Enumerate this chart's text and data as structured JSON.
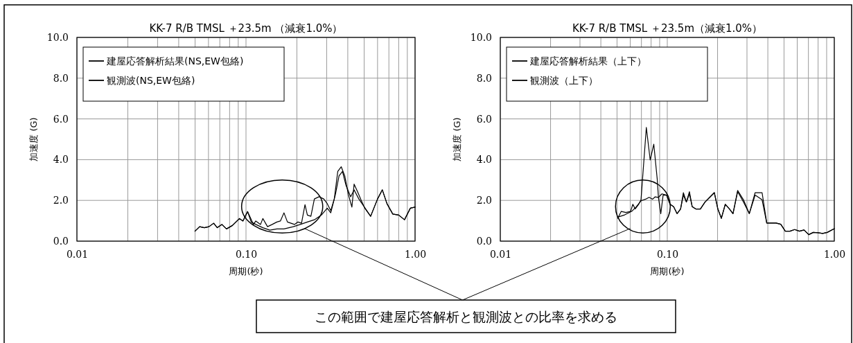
{
  "chart_data": [
    {
      "type": "line",
      "title": "KK-7 R/B TMSL ＋23.5m （減衰1.0%）",
      "xlabel": "周期(秒)",
      "ylabel": "加速度 (G)",
      "log": "x",
      "grid": true,
      "legend": "top left",
      "xlim": [
        0.01,
        1
      ],
      "ylim": [
        0,
        10
      ],
      "xticks": [
        {
          "value": 0.01,
          "label": "0.01"
        },
        {
          "value": 0.02,
          "label": null
        },
        {
          "value": 0.03,
          "label": null
        },
        {
          "value": 0.04,
          "label": null
        },
        {
          "value": 0.05,
          "label": null
        },
        {
          "value": 0.06,
          "label": null
        },
        {
          "value": 0.07,
          "label": null
        },
        {
          "value": 0.08,
          "label": null
        },
        {
          "value": 0.09,
          "label": null
        },
        {
          "value": 0.1,
          "label": "0.10"
        },
        {
          "value": 0.2,
          "label": null
        },
        {
          "value": 0.3,
          "label": null
        },
        {
          "value": 0.4,
          "label": null
        },
        {
          "value": 0.5,
          "label": null
        },
        {
          "value": 0.6,
          "label": null
        },
        {
          "value": 0.7,
          "label": null
        },
        {
          "value": 0.8,
          "label": null
        },
        {
          "value": 0.9,
          "label": null
        },
        {
          "value": 1,
          "label": "1.00"
        }
      ],
      "yticks": [
        {
          "value": 0,
          "label": "0.0"
        },
        {
          "value": 2,
          "label": "2.0"
        },
        {
          "value": 4,
          "label": "4.0"
        },
        {
          "value": 6,
          "label": "6.0"
        },
        {
          "value": 8,
          "label": "8.0"
        },
        {
          "value": 10,
          "label": "10.0"
        }
      ],
      "series": [
        {
          "name": "建屋応答解析結果(NS,EW包絡)",
          "color": "#000000",
          "x": [
            0.0499,
            0.0532,
            0.0567,
            0.0604,
            0.0644,
            0.0676,
            0.072,
            0.0767,
            0.0831,
            0.0915,
            0.0959,
            0.1022,
            0.1073,
            0.1143,
            0.1258,
            0.1385,
            0.1523,
            0.1677,
            0.1905,
            0.2096,
            0.2307,
            0.2538,
            0.2793,
            0.3024,
            0.3172,
            0.338,
            0.355,
            0.372,
            0.39,
            0.416,
            0.436,
            0.465,
            0.496,
            0.546,
            0.6,
            0.64,
            0.682,
            0.738,
            0.8,
            0.866,
            0.938,
            1.0
          ],
          "values": [
            0.49,
            0.71,
            0.66,
            0.71,
            0.88,
            0.66,
            0.82,
            0.6,
            0.77,
            1.11,
            0.99,
            1.45,
            0.94,
            0.82,
            0.66,
            0.54,
            0.6,
            0.6,
            0.71,
            0.82,
            0.94,
            1.05,
            1.28,
            1.62,
            1.39,
            2.29,
            3.2,
            3.42,
            2.75,
            2.18,
            2.52,
            2.07,
            1.73,
            1.22,
            2.07,
            2.52,
            1.84,
            1.33,
            1.28,
            1.05,
            1.62,
            1.67
          ]
        },
        {
          "name": "観測波(NS,EW包絡)",
          "color": "#000000",
          "x": [
            0.0499,
            0.0532,
            0.0567,
            0.0604,
            0.0644,
            0.0676,
            0.072,
            0.0767,
            0.0831,
            0.0915,
            0.0959,
            0.1022,
            0.1107,
            0.1143,
            0.1219,
            0.1258,
            0.1341,
            0.1429,
            0.1523,
            0.1598,
            0.1677,
            0.1759,
            0.1845,
            0.1935,
            0.203,
            0.213,
            0.2234,
            0.2307,
            0.242,
            0.2538,
            0.2705,
            0.2884,
            0.3024,
            0.3172,
            0.3328,
            0.349,
            0.366,
            0.384,
            0.403,
            0.423,
            0.436,
            0.458,
            0.48,
            0.504,
            0.546,
            0.6,
            0.64,
            0.682,
            0.738,
            0.8,
            0.866,
            0.938,
            1.0
          ],
          "values": [
            0.49,
            0.71,
            0.66,
            0.71,
            0.88,
            0.66,
            0.82,
            0.6,
            0.77,
            1.11,
            0.99,
            1.45,
            0.82,
            0.99,
            0.82,
            1.11,
            0.71,
            0.82,
            0.94,
            0.99,
            1.39,
            0.94,
            0.88,
            0.82,
            0.94,
            0.88,
            1.79,
            1.28,
            1.22,
            2.07,
            2.18,
            2.07,
            1.84,
            1.5,
            2.07,
            3.42,
            3.65,
            3.2,
            2.29,
            1.67,
            2.8,
            2.41,
            2.01,
            1.62,
            1.22,
            2.07,
            2.52,
            1.84,
            1.33,
            1.28,
            1.05,
            1.62,
            1.67
          ]
        }
      ]
    },
    {
      "type": "line",
      "title": "KK-7 R/B TMSL ＋23.5m（減衰1.0%）",
      "xlabel": "周期(秒)",
      "ylabel": "加速度 (G)",
      "log": "x",
      "grid": true,
      "legend": "top left",
      "annotations": [
        "この範囲で建屋応答解析と観測波との比率を求める"
      ],
      "xlim": [
        0.01,
        1
      ],
      "ylim": [
        0,
        10
      ],
      "xticks": [
        {
          "value": 0.01,
          "label": "0.01"
        },
        {
          "value": 0.02,
          "label": null
        },
        {
          "value": 0.03,
          "label": null
        },
        {
          "value": 0.04,
          "label": null
        },
        {
          "value": 0.05,
          "label": null
        },
        {
          "value": 0.06,
          "label": null
        },
        {
          "value": 0.07,
          "label": null
        },
        {
          "value": 0.08,
          "label": null
        },
        {
          "value": 0.09,
          "label": null
        },
        {
          "value": 0.1,
          "label": "0.10"
        },
        {
          "value": 0.2,
          "label": null
        },
        {
          "value": 0.3,
          "label": null
        },
        {
          "value": 0.4,
          "label": null
        },
        {
          "value": 0.5,
          "label": null
        },
        {
          "value": 0.6,
          "label": null
        },
        {
          "value": 0.7,
          "label": null
        },
        {
          "value": 0.8,
          "label": null
        },
        {
          "value": 0.9,
          "label": null
        },
        {
          "value": 1,
          "label": "1.00"
        }
      ],
      "yticks": [
        {
          "value": 0,
          "label": "0.0"
        },
        {
          "value": 2,
          "label": "2.0"
        },
        {
          "value": 4,
          "label": "4.0"
        },
        {
          "value": 6,
          "label": "6.0"
        },
        {
          "value": 8,
          "label": "8.0"
        },
        {
          "value": 10,
          "label": "10.0"
        }
      ],
      "series": [
        {
          "name": "建屋応答解析結果（上下）",
          "color": "#000000",
          "x": [
            0.0505,
            0.0556,
            0.0612,
            0.0652,
            0.0696,
            0.0742,
            0.0778,
            0.0817,
            0.0844,
            0.0885,
            0.0929,
            0.099,
            0.1039,
            0.1091,
            0.1144,
            0.1201,
            0.1248,
            0.1301,
            0.1357,
            0.141,
            0.148,
            0.1578,
            0.1682,
            0.1795,
            0.1913,
            0.2008,
            0.2107,
            0.2225,
            0.2357,
            0.2474,
            0.2638,
            0.2858,
            0.3097,
            0.3357,
            0.3695,
            0.394,
            0.42,
            0.448,
            0.478,
            0.509,
            0.543,
            0.579,
            0.618,
            0.659,
            0.703,
            0.749,
            0.799,
            0.852,
            0.908,
            1.0
          ],
          "values": [
            1.18,
            1.29,
            1.46,
            1.69,
            1.98,
            2.06,
            2.15,
            2.06,
            2.17,
            2.15,
            2.32,
            2.26,
            1.81,
            1.69,
            1.35,
            1.58,
            2.26,
            1.92,
            2.32,
            1.69,
            1.58,
            1.58,
            1.92,
            2.15,
            2.38,
            1.58,
            1.12,
            1.81,
            1.58,
            1.35,
            2.43,
            1.92,
            1.35,
            2.26,
            2.03,
            0.89,
            0.89,
            0.89,
            0.83,
            0.49,
            0.49,
            0.57,
            0.49,
            0.55,
            0.32,
            0.43,
            0.41,
            0.38,
            0.43,
            0.61
          ]
        },
        {
          "name": "観測波（上下）",
          "color": "#000000",
          "x": [
            0.0505,
            0.053,
            0.0565,
            0.0603,
            0.0622,
            0.0642,
            0.0674,
            0.0696,
            0.0749,
            0.079,
            0.083,
            0.087,
            0.0885,
            0.0914,
            0.0944,
            0.099,
            0.1039,
            0.1091,
            0.1144,
            0.1201,
            0.1248,
            0.1301,
            0.1357,
            0.141,
            0.148,
            0.1578,
            0.1682,
            0.1795,
            0.1913,
            0.2008,
            0.2107,
            0.2225,
            0.2357,
            0.2474,
            0.2638,
            0.2858,
            0.3097,
            0.3357,
            0.3695,
            0.394,
            0.42,
            0.448,
            0.478,
            0.509,
            0.543,
            0.579,
            0.618,
            0.659,
            0.703,
            0.749,
            0.799,
            0.852,
            0.908,
            1.0
          ],
          "values": [
            1.12,
            1.46,
            1.41,
            1.46,
            1.81,
            1.58,
            1.81,
            2.03,
            5.58,
            3.98,
            4.76,
            3.06,
            2.15,
            1.35,
            2.26,
            2.26,
            1.81,
            1.69,
            1.35,
            1.58,
            2.38,
            1.92,
            2.43,
            1.69,
            1.58,
            1.58,
            1.92,
            2.15,
            2.38,
            1.58,
            1.12,
            1.81,
            1.58,
            1.35,
            2.49,
            2.03,
            1.35,
            2.38,
            2.38,
            0.89,
            0.89,
            0.89,
            0.83,
            0.49,
            0.49,
            0.57,
            0.49,
            0.55,
            0.32,
            0.43,
            0.41,
            0.38,
            0.43,
            0.61
          ]
        }
      ]
    }
  ]
}
